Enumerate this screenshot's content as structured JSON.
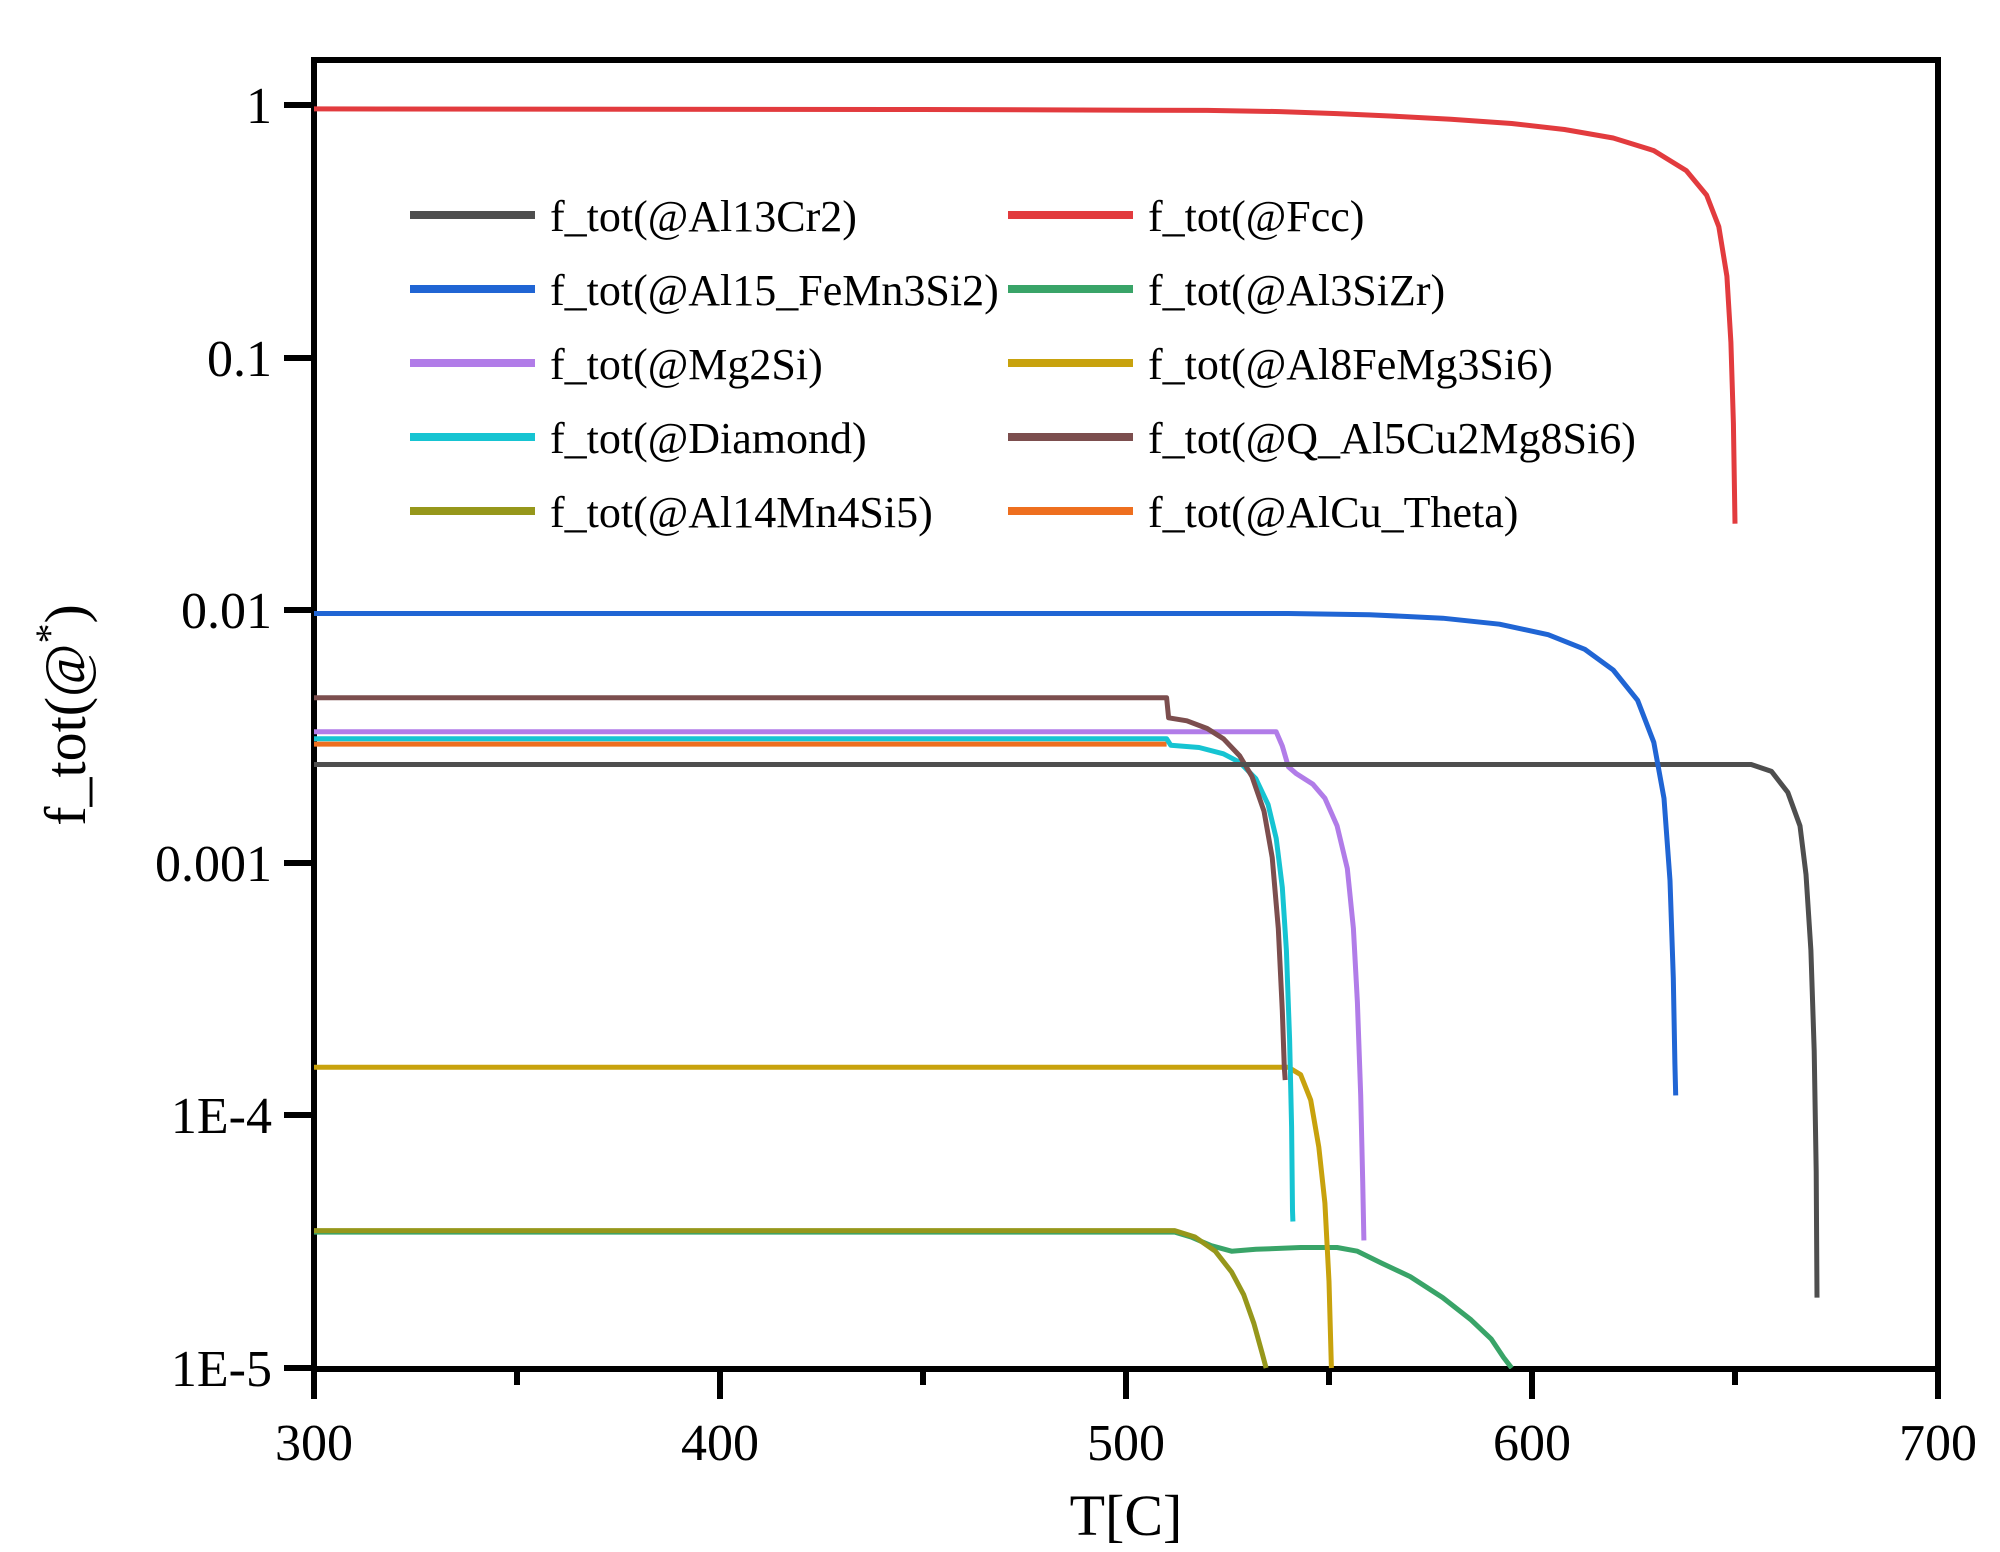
{
  "figure": {
    "background": "#ffffff",
    "axis_color": "#000000"
  },
  "axes": {
    "x": {
      "title": "T[C]",
      "min": 300,
      "max": 700,
      "ticks": [
        {
          "value": 300,
          "label": "300"
        },
        {
          "value": 400,
          "label": "400"
        },
        {
          "value": 500,
          "label": "500"
        },
        {
          "value": 600,
          "label": "600"
        },
        {
          "value": 700,
          "label": "700"
        }
      ],
      "minor_ticks": [
        350,
        450,
        550,
        650
      ]
    },
    "y": {
      "title_main": "f_tot(@",
      "title_sup": "*",
      "title_close": ")",
      "scale": "log",
      "min": 1e-05,
      "max": 1,
      "ticks": [
        {
          "value": 1,
          "label": "1"
        },
        {
          "value": 0.1,
          "label": "0.1"
        },
        {
          "value": 0.01,
          "label": "0.01"
        },
        {
          "value": 0.001,
          "label": "0.001"
        },
        {
          "value": 0.0001,
          "label": "1E-4"
        },
        {
          "value": 1e-05,
          "label": "1E-5"
        }
      ]
    }
  },
  "chart_data": {
    "type": "line",
    "title": "",
    "xlabel": "T[C]",
    "ylabel": "f_tot(@*)",
    "xlim": [
      300,
      700
    ],
    "ylim": [
      1e-05,
      1
    ],
    "y_scale": "log",
    "grid": false,
    "legend_position": "inside upper-left, two columns",
    "series": [
      {
        "name": "f_tot(@Al13Cr2)",
        "color": "#4e4e4e",
        "points": [
          [
            300,
            0.00245
          ],
          [
            500,
            0.00245
          ],
          [
            654,
            0.00245
          ],
          [
            659,
            0.0023
          ],
          [
            663,
            0.0019
          ],
          [
            666,
            0.0014
          ],
          [
            667.5,
            0.0009
          ],
          [
            668.7,
            0.00045
          ],
          [
            669.5,
            0.00018
          ],
          [
            670,
            6e-05
          ],
          [
            670.2,
            1.9e-05
          ]
        ]
      },
      {
        "name": "f_tot(@Fcc)",
        "color": "#e23b3e",
        "points": [
          [
            300,
            0.965
          ],
          [
            450,
            0.96
          ],
          [
            520,
            0.952
          ],
          [
            538,
            0.942
          ],
          [
            552,
            0.925
          ],
          [
            565,
            0.905
          ],
          [
            580,
            0.878
          ],
          [
            595,
            0.845
          ],
          [
            608,
            0.8
          ],
          [
            620,
            0.74
          ],
          [
            630,
            0.66
          ],
          [
            638,
            0.55
          ],
          [
            643,
            0.44
          ],
          [
            646,
            0.33
          ],
          [
            648,
            0.21
          ],
          [
            649,
            0.115
          ],
          [
            649.6,
            0.055
          ],
          [
            650,
            0.022
          ]
        ]
      },
      {
        "name": "f_tot(@Al15_FeMn3Si2)",
        "color": "#2065d4",
        "points": [
          [
            300,
            0.0097
          ],
          [
            540,
            0.0097
          ],
          [
            560,
            0.0096
          ],
          [
            578,
            0.0093
          ],
          [
            592,
            0.0088
          ],
          [
            604,
            0.008
          ],
          [
            613,
            0.007
          ],
          [
            620,
            0.0058
          ],
          [
            626,
            0.0044
          ],
          [
            630,
            0.003
          ],
          [
            632.5,
            0.0018
          ],
          [
            634,
            0.00085
          ],
          [
            634.8,
            0.00035
          ],
          [
            635.2,
            0.00016
          ],
          [
            635.4,
            0.00012
          ]
        ]
      },
      {
        "name": "f_tot(@Al3SiZr)",
        "color": "#39a468",
        "points": [
          [
            300,
            3.45e-05
          ],
          [
            512,
            3.45e-05
          ],
          [
            516,
            3.3e-05
          ],
          [
            521,
            3.05e-05
          ],
          [
            526,
            2.9e-05
          ],
          [
            532,
            2.95e-05
          ],
          [
            543,
            3e-05
          ],
          [
            552,
            3e-05
          ],
          [
            557,
            2.9e-05
          ],
          [
            563,
            2.6e-05
          ],
          [
            570,
            2.3e-05
          ],
          [
            578,
            1.9e-05
          ],
          [
            585,
            1.55e-05
          ],
          [
            590,
            1.3e-05
          ],
          [
            593,
            1.1e-05
          ],
          [
            595,
            1e-05
          ]
        ]
      },
      {
        "name": "f_tot(@Mg2Si)",
        "color": "#b17ce8",
        "points": [
          [
            300,
            0.0033
          ],
          [
            537,
            0.0033
          ],
          [
            538.5,
            0.0029
          ],
          [
            540,
            0.0024
          ],
          [
            542,
            0.00225
          ],
          [
            546,
            0.00205
          ],
          [
            549,
            0.0018
          ],
          [
            552,
            0.0014
          ],
          [
            554.5,
            0.00095
          ],
          [
            556,
            0.00055
          ],
          [
            557,
            0.00028
          ],
          [
            557.8,
            0.00012
          ],
          [
            558.3,
            5.5e-05
          ],
          [
            558.6,
            3.2e-05
          ]
        ]
      },
      {
        "name": "f_tot(@Al8FeMg3Si6)",
        "color": "#c8a20d",
        "points": [
          [
            300,
            0.000155
          ],
          [
            540,
            0.000155
          ],
          [
            543,
            0.000145
          ],
          [
            545.5,
            0.000115
          ],
          [
            547.5,
            7.5e-05
          ],
          [
            549,
            4.5e-05
          ],
          [
            550,
            2.2e-05
          ],
          [
            550.6,
            1e-05
          ]
        ]
      },
      {
        "name": "f_tot(@Diamond)",
        "color": "#16c4d2",
        "points": [
          [
            300,
            0.0031
          ],
          [
            510,
            0.0031
          ],
          [
            511,
            0.00292
          ],
          [
            518,
            0.00286
          ],
          [
            524,
            0.0027
          ],
          [
            528,
            0.0025
          ],
          [
            532,
            0.00215
          ],
          [
            535,
            0.0017
          ],
          [
            537,
            0.00125
          ],
          [
            538.5,
            0.0008
          ],
          [
            539.5,
            0.00045
          ],
          [
            540.3,
            0.0002
          ],
          [
            540.8,
            9e-05
          ],
          [
            541,
            4.2e-05
          ],
          [
            541.1,
            3.8e-05
          ]
        ]
      },
      {
        "name": "f_tot(@Q_Al5Cu2Mg8Si6)",
        "color": "#7c4e4e",
        "points": [
          [
            300,
            0.0045
          ],
          [
            510,
            0.0045
          ],
          [
            510.5,
            0.00375
          ],
          [
            515,
            0.00365
          ],
          [
            520,
            0.0034
          ],
          [
            524,
            0.0031
          ],
          [
            528,
            0.00265
          ],
          [
            531,
            0.0022
          ],
          [
            534,
            0.0016
          ],
          [
            536,
            0.00105
          ],
          [
            537.5,
            0.00055
          ],
          [
            538.5,
            0.00026
          ],
          [
            539,
            0.000155
          ],
          [
            539.2,
            0.000138
          ]
        ]
      },
      {
        "name": "f_tot(@Al14Mn4Si5)",
        "color": "#96971b",
        "points": [
          [
            300,
            3.5e-05
          ],
          [
            512,
            3.5e-05
          ],
          [
            517,
            3.3e-05
          ],
          [
            522,
            2.9e-05
          ],
          [
            526,
            2.4e-05
          ],
          [
            529,
            1.95e-05
          ],
          [
            531.5,
            1.5e-05
          ],
          [
            533.5,
            1.15e-05
          ],
          [
            534.5,
            1e-05
          ]
        ]
      },
      {
        "name": "f_tot(@AlCu_Theta)",
        "color": "#ee6f1f",
        "points": [
          [
            300,
            0.00295
          ],
          [
            510,
            0.00295
          ]
        ]
      }
    ]
  },
  "legend": {
    "columns": 2,
    "rows": 5
  }
}
